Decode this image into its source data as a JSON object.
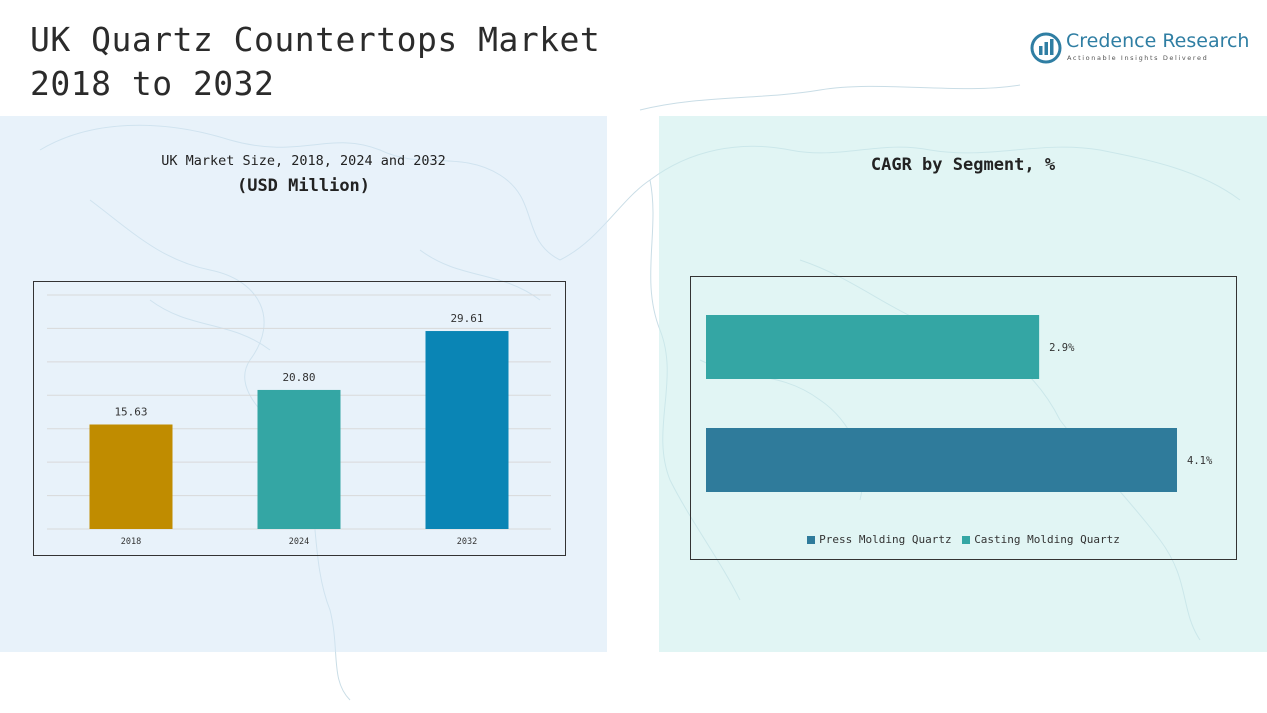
{
  "page": {
    "title_line1": "UK Quartz Countertops Market",
    "title_line2": "2018 to 2032"
  },
  "logo": {
    "name": "Credence Research",
    "tagline": "Actionable Insights Delivered",
    "color": "#2f7ea3"
  },
  "left_panel": {
    "title": "UK Market Size, 2018, 2024 and 2032",
    "subtitle": "(USD Million)"
  },
  "right_panel": {
    "title": "CAGR by Segment, %"
  },
  "chart_data": [
    {
      "type": "bar",
      "title": "UK Market Size, 2018, 2024 and 2032",
      "subtitle": "(USD Million)",
      "categories": [
        "2018",
        "2024",
        "2032"
      ],
      "values": [
        15.63,
        20.8,
        29.61
      ],
      "value_labels": [
        "15.63",
        "20.80",
        "29.61"
      ],
      "colors": [
        "#c08c00",
        "#34a6a4",
        "#0a85b5"
      ],
      "ylim": [
        0,
        35
      ],
      "grid": true
    },
    {
      "type": "bar",
      "orientation": "horizontal",
      "title": "CAGR by Segment, %",
      "categories": [
        "Casting Molding Quartz",
        "Press Molding Quartz"
      ],
      "values": [
        2.9,
        4.1
      ],
      "value_labels": [
        "2.9%",
        "4.1%"
      ],
      "colors": [
        "#34a6a4",
        "#2f7b9b"
      ],
      "legend": [
        "Press Molding Quartz",
        "Casting Molding Quartz"
      ],
      "legend_colors": [
        "#2f7b9b",
        "#34a6a4"
      ],
      "legend_position": "bottom",
      "xlim": [
        0,
        4.1
      ]
    }
  ]
}
